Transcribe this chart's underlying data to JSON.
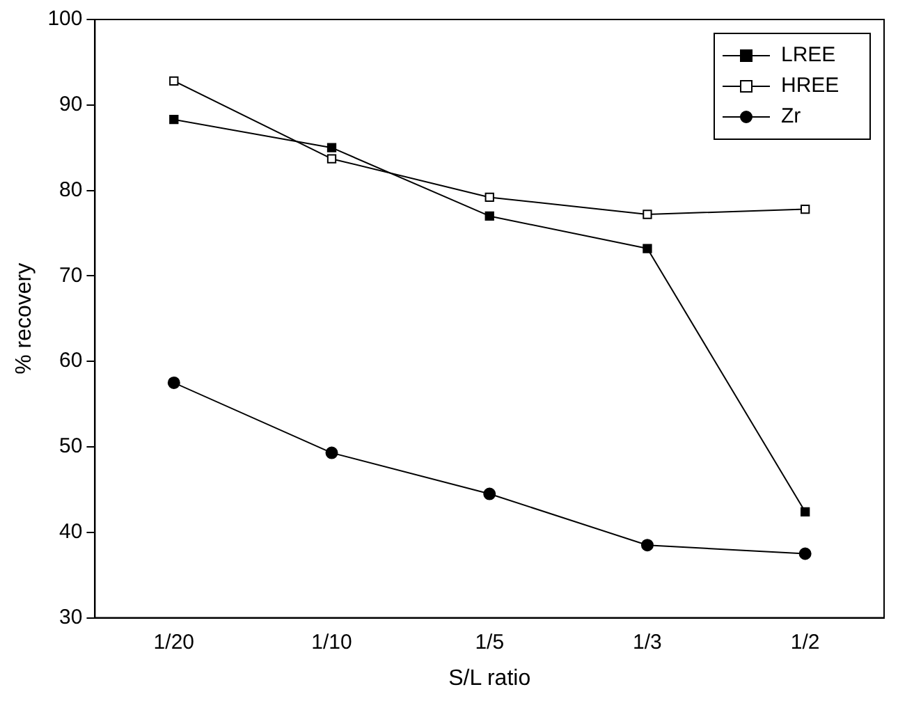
{
  "chart_data": {
    "type": "line",
    "xlabel": "S/L ratio",
    "ylabel": "% recovery",
    "categories": [
      "1/20",
      "1/10",
      "1/5",
      "1/3",
      "1/2"
    ],
    "series": [
      {
        "name": "LREE",
        "color": "#000000",
        "marker": "square",
        "values": [
          88.3,
          85.0,
          77.0,
          73.2,
          42.4
        ]
      },
      {
        "name": "HREE",
        "color": "#000000",
        "marker": "square",
        "values": [
          92.8,
          83.7,
          79.2,
          77.2,
          77.8
        ]
      },
      {
        "name": "Zr",
        "color": "#000000",
        "marker": "circle",
        "values": [
          57.5,
          49.3,
          44.5,
          38.5,
          37.5
        ]
      }
    ],
    "ylim": [
      30,
      100
    ],
    "yticks": [
      30,
      40,
      50,
      60,
      70,
      80,
      90,
      100
    ],
    "grid": false,
    "legend": "top right",
    "line_style": "solid"
  }
}
